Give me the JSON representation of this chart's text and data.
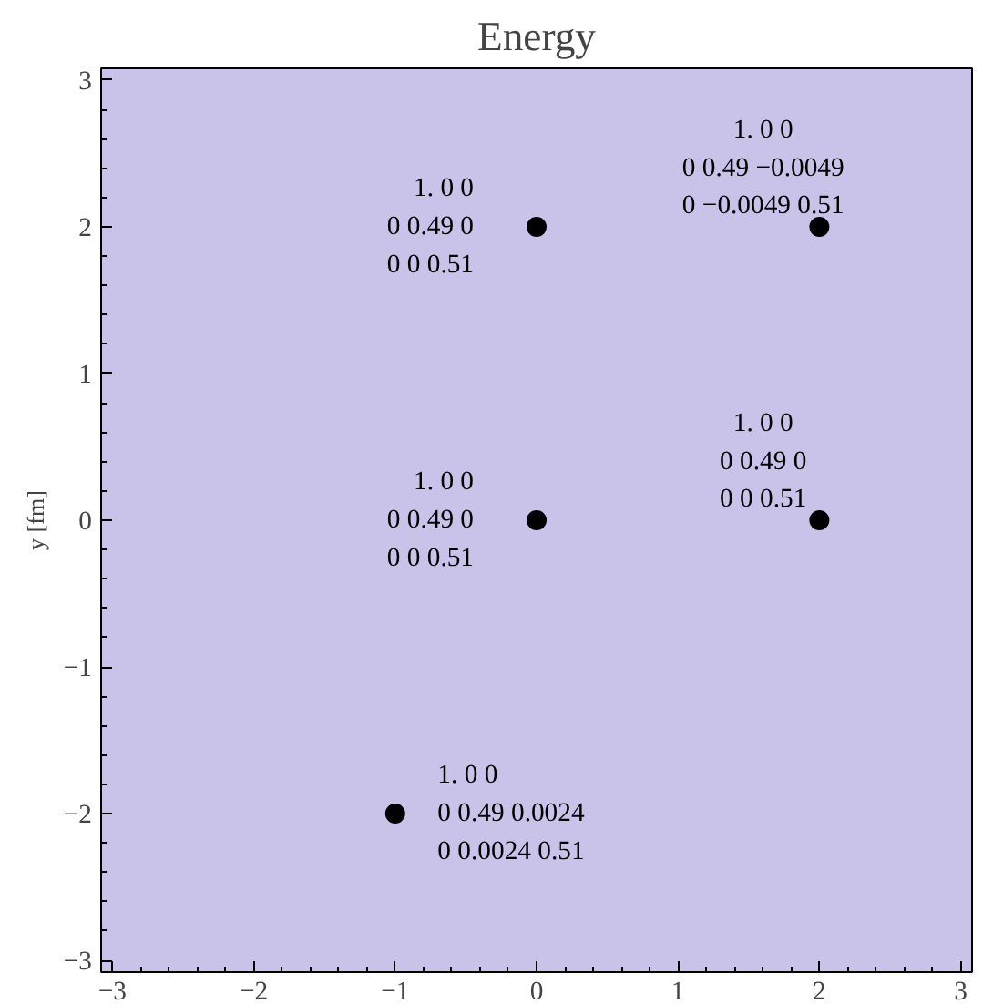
{
  "chart_data": {
    "type": "scatter",
    "title": "Energy",
    "ylabel": "y [fm]",
    "x": [
      0,
      2,
      2,
      0,
      -1
    ],
    "values": [
      2,
      2,
      0,
      0,
      -2
    ],
    "color": "#000000",
    "marker": "circle",
    "xlim": [
      -3.08,
      3.08
    ],
    "ylim": [
      -3.08,
      3.08
    ],
    "xticks": [
      -3,
      -2,
      -1,
      0,
      1,
      2,
      3
    ],
    "yticks": [
      -3,
      -2,
      -1,
      0,
      1,
      2,
      3
    ],
    "annotations": [
      {
        "text": "1.  0  0\n0  0.49  0\n0  0  0.51",
        "x": 0,
        "y": 2
      },
      {
        "text": "1.  0  0\n0  0.49  −0.0049\n0  −0.0049  0.51",
        "x": 2,
        "y": 2
      },
      {
        "text": "1.  0  0\n0  0.49  0\n0  0  0.51",
        "x": 2,
        "y": 0
      },
      {
        "text": "1.  0  0\n0  0.49  0\n0  0  0.51",
        "x": 0,
        "y": 0
      },
      {
        "text": "1.  0  0\n0  0.49  0.0024\n0  0.0024  0.51",
        "x": -1,
        "y": -2
      }
    ]
  }
}
